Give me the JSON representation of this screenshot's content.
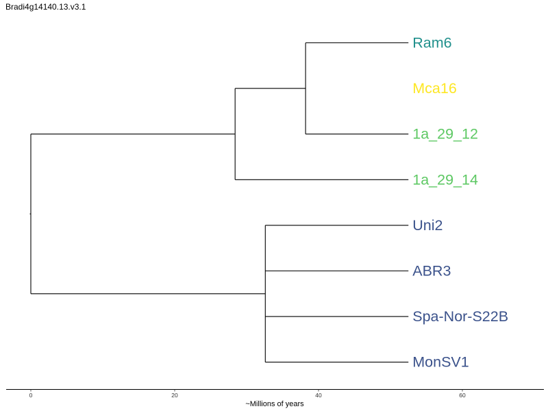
{
  "title": "Bradi4g14140.13.v3.1",
  "chart_data": {
    "type": "dendrogram",
    "xlabel": "~Millions of years",
    "xlim": [
      -3.4,
      71
    ],
    "x_ticks": [
      0,
      20,
      40,
      60
    ],
    "grid": false,
    "tips": [
      {
        "label": "Ram6",
        "color": "#21908C"
      },
      {
        "label": "Mca16",
        "color": "#FDE725"
      },
      {
        "label": "1a_29_12",
        "color": "#5DC863"
      },
      {
        "label": "1a_29_14",
        "color": "#5DC863"
      },
      {
        "label": "Uni2",
        "color": "#3B528B"
      },
      {
        "label": "ABR3",
        "color": "#3B528B"
      },
      {
        "label": "Spa-Nor-S22B",
        "color": "#3B528B"
      },
      {
        "label": "MonSV1",
        "color": "#3B528B"
      }
    ],
    "tip_age": 52.5,
    "nodes": {
      "root": {
        "age": 0,
        "children": [
          "n1",
          "n4"
        ]
      },
      "n1": {
        "age": 28.4,
        "children": [
          "n2",
          "1a_29_14"
        ]
      },
      "n2": {
        "age": 38.2,
        "children": [
          "Ram6",
          "1a_29_12"
        ]
      },
      "n4": {
        "age": 32.6,
        "children": [
          "Uni2",
          "ABR3",
          "Spa-Nor-S22B",
          "MonSV1"
        ]
      }
    }
  }
}
